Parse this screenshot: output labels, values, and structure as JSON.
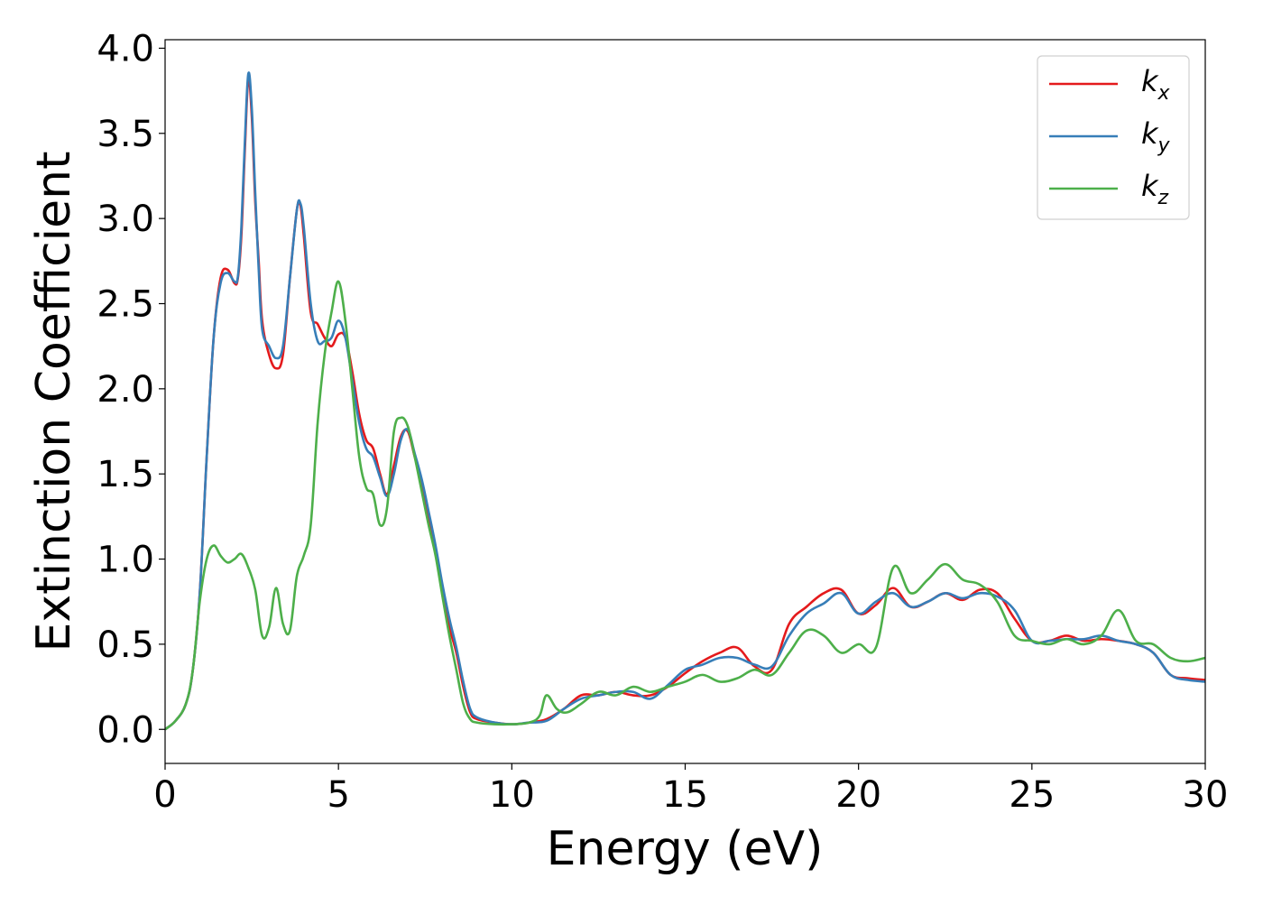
{
  "chart_data": {
    "type": "line",
    "xlabel": "Energy (eV)",
    "ylabel": "Extinction Coefficient",
    "xlim": [
      0,
      30
    ],
    "ylim": [
      -0.2,
      4.05
    ],
    "xticks": [
      0,
      5,
      10,
      15,
      20,
      25,
      30
    ],
    "xtick_labels": [
      "0",
      "5",
      "10",
      "15",
      "20",
      "25",
      "30"
    ],
    "yticks": [
      0.0,
      0.5,
      1.0,
      1.5,
      2.0,
      2.5,
      3.0,
      3.5,
      4.0
    ],
    "ytick_labels": [
      "0.0",
      "0.5",
      "1.0",
      "1.5",
      "2.0",
      "2.5",
      "3.0",
      "3.5",
      "4.0"
    ],
    "grid": false,
    "legend_position": "top-right",
    "series": [
      {
        "name": "k",
        "subscript": "x",
        "color": "#e41a1c",
        "x": [
          0,
          0.3,
          0.6,
          0.8,
          1.0,
          1.2,
          1.4,
          1.6,
          1.8,
          2.0,
          2.1,
          2.2,
          2.3,
          2.4,
          2.5,
          2.6,
          2.7,
          2.8,
          3.0,
          3.2,
          3.4,
          3.6,
          3.8,
          3.9,
          4.0,
          4.2,
          4.4,
          4.6,
          4.8,
          5.0,
          5.2,
          5.4,
          5.6,
          5.8,
          6.0,
          6.2,
          6.4,
          6.6,
          6.8,
          7.0,
          7.2,
          7.4,
          7.6,
          7.8,
          8.0,
          8.2,
          8.4,
          8.6,
          8.8,
          9.0,
          9.5,
          10.0,
          10.5,
          11.0,
          11.5,
          12.0,
          12.5,
          13.0,
          13.5,
          14.0,
          14.5,
          15.0,
          15.5,
          16.0,
          16.5,
          17.0,
          17.5,
          18.0,
          18.5,
          19.0,
          19.5,
          20.0,
          20.5,
          21.0,
          21.5,
          22.0,
          22.5,
          23.0,
          23.5,
          24.0,
          24.5,
          25.0,
          25.5,
          26.0,
          26.5,
          27.0,
          27.5,
          28.0,
          28.5,
          29.0,
          29.5,
          30.0
        ],
        "values": [
          0.0,
          0.05,
          0.15,
          0.35,
          0.8,
          1.6,
          2.3,
          2.65,
          2.7,
          2.62,
          2.65,
          2.9,
          3.4,
          3.82,
          3.6,
          3.1,
          2.75,
          2.4,
          2.2,
          2.12,
          2.2,
          2.65,
          3.05,
          3.08,
          2.9,
          2.45,
          2.38,
          2.3,
          2.25,
          2.32,
          2.3,
          2.1,
          1.85,
          1.7,
          1.65,
          1.5,
          1.38,
          1.55,
          1.72,
          1.75,
          1.6,
          1.45,
          1.25,
          1.05,
          0.8,
          0.6,
          0.45,
          0.25,
          0.1,
          0.06,
          0.04,
          0.03,
          0.04,
          0.06,
          0.12,
          0.2,
          0.2,
          0.22,
          0.2,
          0.2,
          0.25,
          0.33,
          0.4,
          0.45,
          0.48,
          0.37,
          0.35,
          0.62,
          0.72,
          0.8,
          0.82,
          0.68,
          0.73,
          0.83,
          0.72,
          0.75,
          0.8,
          0.76,
          0.82,
          0.8,
          0.65,
          0.52,
          0.52,
          0.55,
          0.52,
          0.53,
          0.52,
          0.5,
          0.45,
          0.32,
          0.3,
          0.29
        ]
      },
      {
        "name": "k",
        "subscript": "y",
        "color": "#377eb8",
        "x": [
          0,
          0.3,
          0.6,
          0.8,
          1.0,
          1.2,
          1.4,
          1.6,
          1.8,
          2.0,
          2.1,
          2.2,
          2.3,
          2.4,
          2.5,
          2.6,
          2.7,
          2.8,
          3.0,
          3.2,
          3.4,
          3.6,
          3.8,
          3.9,
          4.0,
          4.2,
          4.4,
          4.6,
          4.8,
          5.0,
          5.2,
          5.4,
          5.6,
          5.8,
          6.0,
          6.2,
          6.4,
          6.6,
          6.8,
          7.0,
          7.2,
          7.4,
          7.6,
          7.8,
          8.0,
          8.2,
          8.4,
          8.6,
          8.8,
          9.0,
          9.5,
          10.0,
          10.5,
          11.0,
          11.5,
          12.0,
          12.5,
          13.0,
          13.5,
          14.0,
          14.5,
          15.0,
          15.5,
          16.0,
          16.5,
          17.0,
          17.5,
          18.0,
          18.5,
          19.0,
          19.5,
          20.0,
          20.5,
          21.0,
          21.5,
          22.0,
          22.5,
          23.0,
          23.5,
          24.0,
          24.5,
          25.0,
          25.5,
          26.0,
          26.5,
          27.0,
          27.5,
          28.0,
          28.5,
          29.0,
          29.5,
          30.0
        ],
        "values": [
          0.0,
          0.05,
          0.15,
          0.35,
          0.8,
          1.6,
          2.3,
          2.62,
          2.68,
          2.63,
          2.66,
          2.95,
          3.45,
          3.85,
          3.65,
          3.15,
          2.7,
          2.35,
          2.25,
          2.18,
          2.25,
          2.65,
          3.05,
          3.09,
          2.95,
          2.5,
          2.28,
          2.28,
          2.3,
          2.4,
          2.3,
          2.05,
          1.8,
          1.65,
          1.6,
          1.48,
          1.37,
          1.5,
          1.7,
          1.76,
          1.62,
          1.47,
          1.28,
          1.08,
          0.85,
          0.65,
          0.48,
          0.28,
          0.12,
          0.07,
          0.04,
          0.03,
          0.04,
          0.05,
          0.12,
          0.18,
          0.2,
          0.22,
          0.22,
          0.18,
          0.26,
          0.35,
          0.38,
          0.42,
          0.42,
          0.38,
          0.37,
          0.55,
          0.68,
          0.74,
          0.8,
          0.68,
          0.75,
          0.8,
          0.72,
          0.75,
          0.8,
          0.77,
          0.8,
          0.78,
          0.7,
          0.52,
          0.52,
          0.53,
          0.53,
          0.55,
          0.52,
          0.5,
          0.45,
          0.32,
          0.29,
          0.28
        ]
      },
      {
        "name": "k",
        "subscript": "z",
        "color": "#4daf4a",
        "x": [
          0,
          0.3,
          0.6,
          0.8,
          1.0,
          1.2,
          1.4,
          1.6,
          1.8,
          2.0,
          2.2,
          2.4,
          2.6,
          2.8,
          3.0,
          3.2,
          3.4,
          3.6,
          3.8,
          4.0,
          4.2,
          4.4,
          4.6,
          4.8,
          5.0,
          5.2,
          5.4,
          5.6,
          5.8,
          6.0,
          6.2,
          6.4,
          6.6,
          6.8,
          7.0,
          7.2,
          7.4,
          7.6,
          7.8,
          8.0,
          8.2,
          8.4,
          8.6,
          8.8,
          9.0,
          9.5,
          10.0,
          10.5,
          10.8,
          11.0,
          11.3,
          11.6,
          12.0,
          12.5,
          13.0,
          13.5,
          14.0,
          14.5,
          15.0,
          15.5,
          16.0,
          16.5,
          17.0,
          17.5,
          18.0,
          18.5,
          19.0,
          19.5,
          20.0,
          20.5,
          21.0,
          21.5,
          22.0,
          22.5,
          23.0,
          23.5,
          24.0,
          24.5,
          25.0,
          25.5,
          26.0,
          26.5,
          27.0,
          27.5,
          28.0,
          28.5,
          29.0,
          29.5,
          30.0
        ],
        "values": [
          0.0,
          0.05,
          0.15,
          0.35,
          0.75,
          1.0,
          1.08,
          1.02,
          0.98,
          1.0,
          1.03,
          0.95,
          0.82,
          0.55,
          0.6,
          0.83,
          0.62,
          0.58,
          0.9,
          1.02,
          1.2,
          1.8,
          2.2,
          2.45,
          2.63,
          2.4,
          2.0,
          1.6,
          1.42,
          1.38,
          1.2,
          1.3,
          1.75,
          1.83,
          1.78,
          1.6,
          1.4,
          1.2,
          1.02,
          0.78,
          0.55,
          0.35,
          0.15,
          0.06,
          0.04,
          0.03,
          0.03,
          0.04,
          0.08,
          0.2,
          0.12,
          0.1,
          0.15,
          0.22,
          0.2,
          0.25,
          0.22,
          0.25,
          0.28,
          0.32,
          0.28,
          0.3,
          0.35,
          0.32,
          0.45,
          0.58,
          0.55,
          0.45,
          0.5,
          0.48,
          0.95,
          0.8,
          0.88,
          0.97,
          0.88,
          0.85,
          0.75,
          0.55,
          0.52,
          0.5,
          0.53,
          0.5,
          0.55,
          0.7,
          0.52,
          0.5,
          0.42,
          0.4,
          0.42
        ]
      }
    ]
  }
}
